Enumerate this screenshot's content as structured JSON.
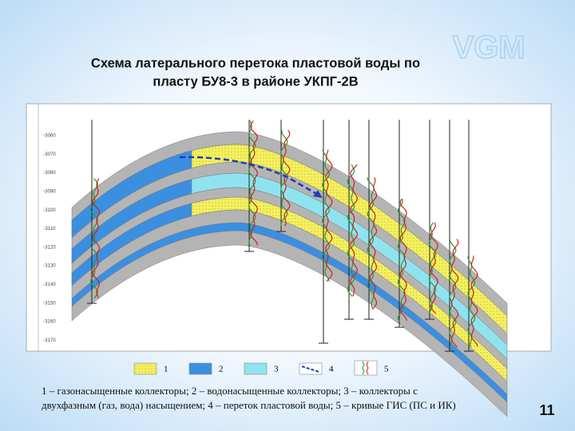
{
  "logo": "VGM",
  "title": {
    "line1": "Схема латерального перетока пластовой воды по",
    "line2": "пласту БУ8-3 в районе УКПГ-2В"
  },
  "section": {
    "depth_labels": [
      "-3060",
      "-3070",
      "-3080",
      "-3090",
      "-3100",
      "-3110",
      "-3120",
      "-3130",
      "-3140",
      "-3150",
      "-3160",
      "-3170"
    ]
  },
  "legend": {
    "items": [
      "1",
      "2",
      "3",
      "4",
      "5"
    ]
  },
  "caption": {
    "line1": "1 – газонасыщенные коллекторы;  2 – водонасыщенные коллекторы;  3 – коллекторы с",
    "line2": "двухфазным (газ, вода) насыщением; 4 – переток пластовой воды;  5 – кривые ГИС (ПС и ИК)"
  },
  "page_number": "11"
}
